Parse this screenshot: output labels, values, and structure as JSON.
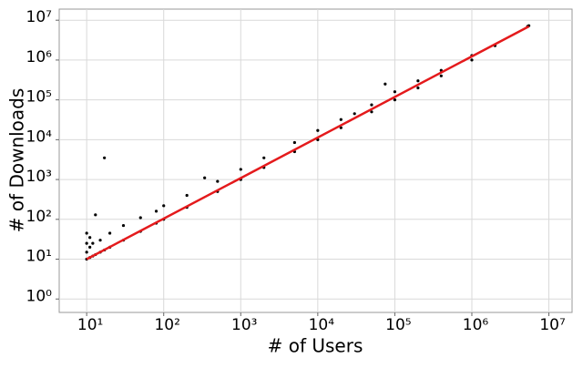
{
  "chart_data": {
    "type": "scatter",
    "x_label": "# of Users",
    "y_label": "# of Downloads",
    "xscale": "log",
    "yscale": "log",
    "grid": true,
    "xlim": [
      4.4,
      20000000
    ],
    "ylim": [
      0.46,
      19000000
    ],
    "xticks": [
      {
        "value": 10,
        "label": "10¹"
      },
      {
        "value": 100,
        "label": "10²"
      },
      {
        "value": 1000,
        "label": "10³"
      },
      {
        "value": 10000,
        "label": "10⁴"
      },
      {
        "value": 100000,
        "label": "10⁵"
      },
      {
        "value": 1000000,
        "label": "10⁶"
      },
      {
        "value": 10000000,
        "label": "10⁷"
      }
    ],
    "yticks": [
      {
        "value": 1,
        "label": "10⁰"
      },
      {
        "value": 10,
        "label": "10¹"
      },
      {
        "value": 100,
        "label": "10²"
      },
      {
        "value": 1000,
        "label": "10³"
      },
      {
        "value": 10000,
        "label": "10⁴"
      },
      {
        "value": 100000,
        "label": "10⁵"
      },
      {
        "value": 1000000,
        "label": "10⁶"
      },
      {
        "value": 10000000,
        "label": "10⁷"
      }
    ],
    "series": [
      {
        "color": "#000000",
        "mode": "points",
        "x": [
          10,
          10,
          10,
          10,
          11,
          11,
          11,
          12,
          12,
          13,
          13,
          15,
          15,
          17,
          17,
          20,
          20,
          30,
          30,
          50,
          50,
          80,
          80,
          100,
          100,
          200,
          200,
          340,
          500,
          500,
          1000,
          1000,
          2000,
          2000,
          5000,
          5000,
          10000,
          10000,
          20000,
          20000,
          30000,
          50000,
          50000,
          75000,
          100000,
          100000,
          200000,
          200000,
          400000,
          400000,
          1000000,
          1000000,
          2000000,
          5300000,
          5500000
        ],
        "values": [
          10,
          15,
          25,
          45,
          11,
          20,
          35,
          12,
          25,
          13,
          130,
          15,
          30,
          3500,
          17,
          20,
          45,
          30,
          70,
          50,
          110,
          80,
          160,
          100,
          220,
          200,
          400,
          1100,
          500,
          900,
          1000,
          1800,
          2000,
          3500,
          5000,
          8500,
          10000,
          17000,
          20000,
          32000,
          45000,
          50000,
          75000,
          250000,
          100000,
          160000,
          200000,
          300000,
          400000,
          550000,
          1000000,
          1300000,
          2300000,
          7000000,
          7300000
        ]
      },
      {
        "color": "#e41a1c",
        "mode": "line",
        "x": [
          10,
          5500000
        ],
        "values": [
          10,
          7000000
        ]
      }
    ]
  }
}
